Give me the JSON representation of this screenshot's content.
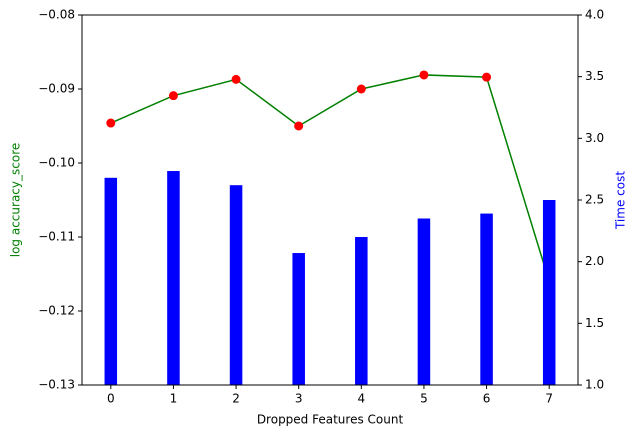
{
  "chart_data": {
    "type": "bar-line",
    "xlabel": "Dropped Features Count",
    "ylabel": "log accuracy_score",
    "ylabel_color": "green",
    "y2label": "Time cost",
    "y2label_color": "blue",
    "x": [
      0,
      1,
      2,
      3,
      4,
      5,
      6,
      7
    ],
    "xlim": [
      -0.46,
      7.46
    ],
    "xticks": [
      0,
      1,
      2,
      3,
      4,
      5,
      6,
      7
    ],
    "ylim": [
      -0.13,
      -0.08
    ],
    "yticks": [
      {
        "value": -0.13,
        "label": "−0.13"
      },
      {
        "value": -0.12,
        "label": "−0.12"
      },
      {
        "value": -0.11,
        "label": "−0.11"
      },
      {
        "value": -0.1,
        "label": "−0.10"
      },
      {
        "value": -0.09,
        "label": "−0.09"
      },
      {
        "value": -0.08,
        "label": "−0.08"
      }
    ],
    "y2lim": [
      1.0,
      4.0
    ],
    "y2ticks": [
      {
        "value": 1.0,
        "label": "1.0"
      },
      {
        "value": 1.5,
        "label": "1.5"
      },
      {
        "value": 2.0,
        "label": "2.0"
      },
      {
        "value": 2.5,
        "label": "2.5"
      },
      {
        "value": 3.0,
        "label": "3.0"
      },
      {
        "value": 3.5,
        "label": "3.5"
      },
      {
        "value": 4.0,
        "label": "4.0"
      }
    ],
    "bar_width": 0.2,
    "series": [
      {
        "type": "line",
        "color": "green",
        "marker_color": "red",
        "values": [
          -0.0946,
          -0.0909,
          -0.0887,
          -0.095,
          -0.09,
          -0.0881,
          -0.0884,
          -0.116
        ]
      },
      {
        "type": "bar",
        "color": "blue",
        "axis": "y2",
        "values": [
          2.68,
          2.735,
          2.62,
          2.07,
          2.2,
          2.35,
          2.39,
          2.5
        ]
      }
    ]
  }
}
